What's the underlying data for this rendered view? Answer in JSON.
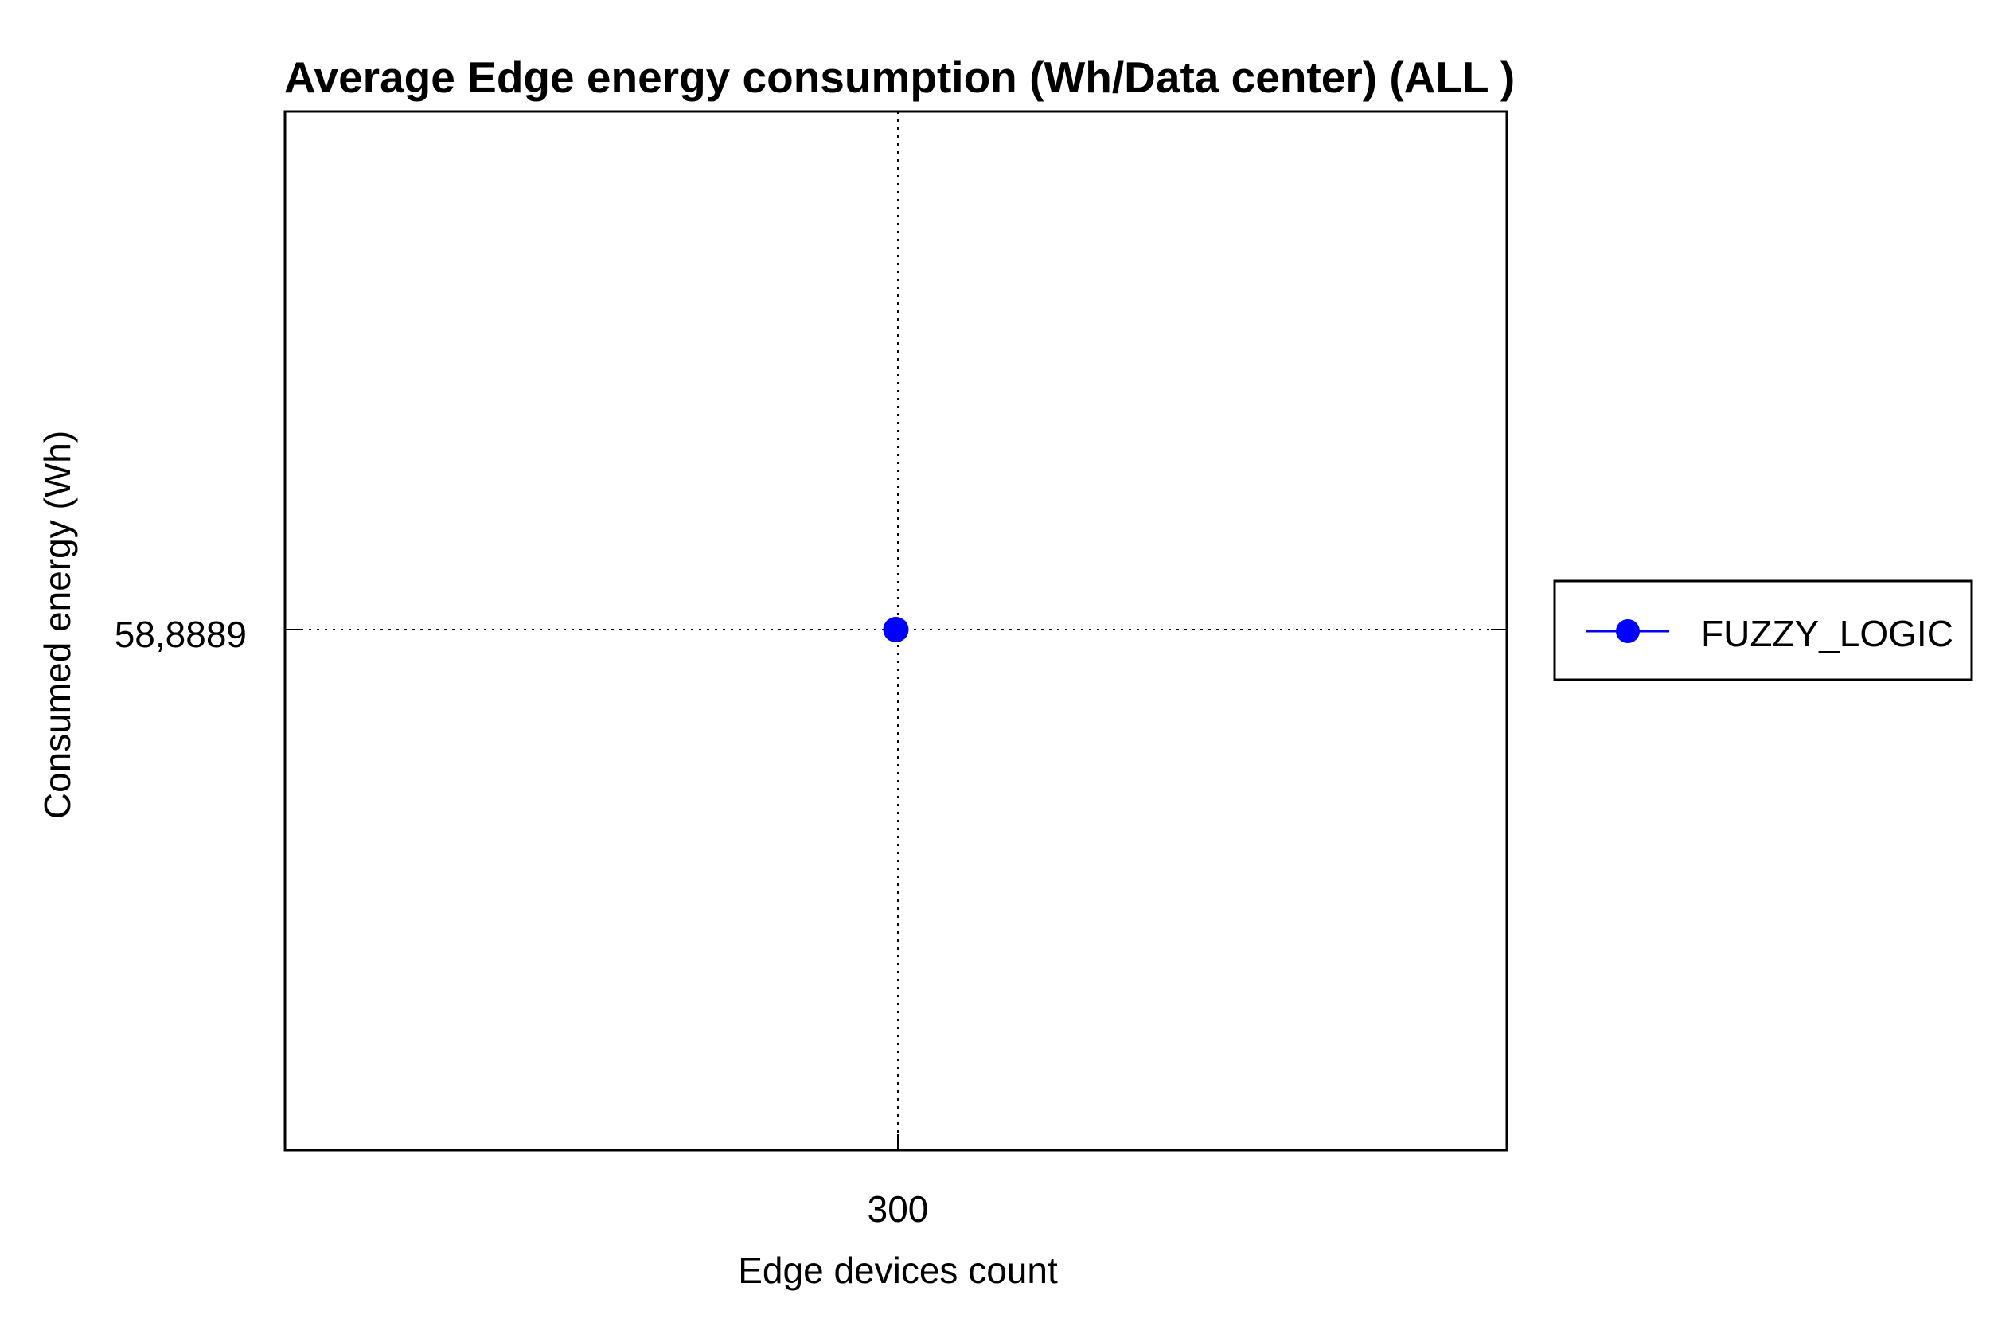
{
  "chart_data": {
    "type": "line",
    "title": "Average Edge energy consumption (Wh/Data center) (ALL )",
    "xlabel": "Edge devices count",
    "ylabel": "Consumed energy (Wh)",
    "x_ticks": [
      "300"
    ],
    "y_ticks": [
      "58,8889"
    ],
    "x": [
      300
    ],
    "series": [
      {
        "name": "FUZZY_LOGIC",
        "values": [
          58.8889
        ],
        "color": "#0000ff",
        "marker": "circle"
      }
    ],
    "grid": true,
    "grid_style": "dotted",
    "legend_position": "right"
  }
}
